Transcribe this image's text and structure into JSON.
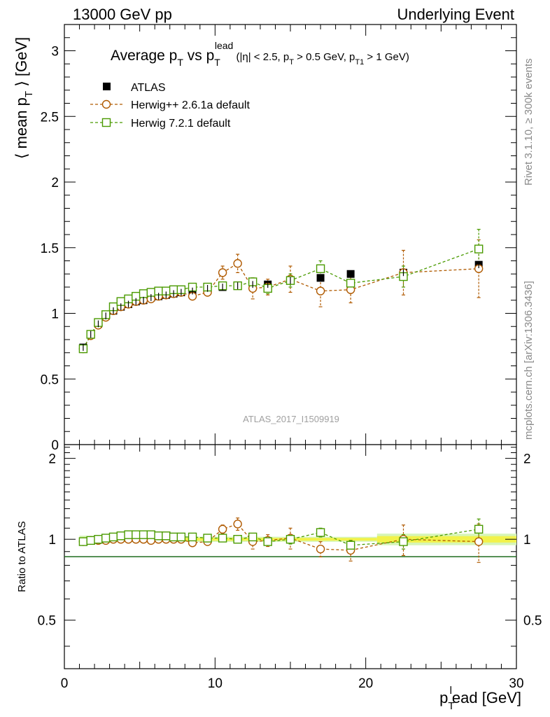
{
  "header": {
    "left": "13000 GeV pp",
    "right": "Underlying Event"
  },
  "side_labels": {
    "rivet": "Rivet 3.1.10, ≥ 300k events",
    "mcplots": "mcplots.cern.ch [arXiv:1306.3436]"
  },
  "watermark": "ATLAS_2017_I1509919",
  "colors": {
    "atlas": "#000000",
    "herwigpp": "#b05a00",
    "herwig7": "#4a9a00",
    "band_inner": "#f2f24a",
    "band_outer": "#d6f5b8"
  },
  "chart_data": [
    {
      "type": "scatter",
      "title": "Average p_T vs p_T^lead (|η| < 2.5, p_T > 0.5 GeV, p_T1 > 1 GeV)",
      "title_parts": {
        "a": "Average p",
        "a_sub": "T",
        "b": " vs p",
        "b_sub": "T",
        "b_sup": "lead",
        "c": " (|η| < 2.5, p",
        "c_sub": "T",
        "d": " > 0.5 GeV, p",
        "d_sub": "T1",
        "e": " > 1 GeV)"
      },
      "ylabel": "⟨ mean p_T ⟩ [GeV]",
      "ylabel_parts": {
        "a": "⟨ mean p",
        "sub": "T",
        "b": " ⟩ [GeV]"
      },
      "xlim": [
        0,
        30
      ],
      "ylim": [
        0,
        3.2
      ],
      "yticks": [
        0,
        0.5,
        1,
        1.5,
        2,
        2.5,
        3
      ],
      "ytick_labels": [
        "0",
        "0.5",
        "1",
        "1.5",
        "2",
        "2.5",
        "3"
      ],
      "legend_position": "top-left",
      "series": [
        {
          "name": "ATLAS",
          "marker": "filled-square",
          "x": [
            1.25,
            1.75,
            2.25,
            2.75,
            3.25,
            3.75,
            4.25,
            4.75,
            5.25,
            5.75,
            6.25,
            6.75,
            7.25,
            7.75,
            8.5,
            9.5,
            10.5,
            11.5,
            12.5,
            13.5,
            15,
            17,
            19,
            22.5,
            27.5
          ],
          "y": [
            0.74,
            0.84,
            0.92,
            0.98,
            1.02,
            1.05,
            1.07,
            1.09,
            1.1,
            1.12,
            1.13,
            1.14,
            1.15,
            1.16,
            1.17,
            1.19,
            1.2,
            1.21,
            1.22,
            1.22,
            1.25,
            1.27,
            1.3,
            1.31,
            1.37
          ],
          "yerr": [
            0.01,
            0.01,
            0.01,
            0.01,
            0.01,
            0.01,
            0.01,
            0.01,
            0.01,
            0.01,
            0.01,
            0.01,
            0.01,
            0.01,
            0.01,
            0.01,
            0.01,
            0.01,
            0.01,
            0.01,
            0.01,
            0.01,
            0.01,
            0.01,
            0.01
          ]
        },
        {
          "name": "Herwig++ 2.6.1a default",
          "marker": "open-circle",
          "x": [
            1.25,
            1.75,
            2.25,
            2.75,
            3.25,
            3.75,
            4.25,
            4.75,
            5.25,
            5.75,
            6.25,
            6.75,
            7.25,
            7.75,
            8.5,
            9.5,
            10.5,
            11.5,
            12.5,
            13.5,
            15,
            17,
            19,
            22.5,
            27.5
          ],
          "y": [
            0.73,
            0.83,
            0.91,
            0.97,
            1.02,
            1.05,
            1.07,
            1.09,
            1.1,
            1.11,
            1.13,
            1.14,
            1.15,
            1.16,
            1.13,
            1.16,
            1.31,
            1.38,
            1.19,
            1.2,
            1.26,
            1.17,
            1.18,
            1.31,
            1.34
          ],
          "yerr": [
            0.01,
            0.01,
            0.01,
            0.01,
            0.01,
            0.01,
            0.01,
            0.01,
            0.01,
            0.01,
            0.01,
            0.01,
            0.01,
            0.01,
            0.01,
            0.02,
            0.05,
            0.07,
            0.08,
            0.06,
            0.1,
            0.12,
            0.1,
            0.17,
            0.22
          ]
        },
        {
          "name": "Herwig 7.2.1 default",
          "marker": "open-square",
          "x": [
            1.25,
            1.75,
            2.25,
            2.75,
            3.25,
            3.75,
            4.25,
            4.75,
            5.25,
            5.75,
            6.25,
            6.75,
            7.25,
            7.75,
            8.5,
            9.5,
            10.5,
            11.5,
            12.5,
            13.5,
            15,
            17,
            19,
            22.5,
            27.5
          ],
          "y": [
            0.73,
            0.84,
            0.93,
            0.99,
            1.05,
            1.09,
            1.11,
            1.13,
            1.15,
            1.16,
            1.17,
            1.17,
            1.18,
            1.18,
            1.2,
            1.2,
            1.21,
            1.21,
            1.24,
            1.19,
            1.25,
            1.34,
            1.23,
            1.28,
            1.49
          ]
        }
      ],
      "yerr_herwig7": [
        0.01,
        0.01,
        0.01,
        0.01,
        0.01,
        0.01,
        0.01,
        0.01,
        0.01,
        0.01,
        0.01,
        0.01,
        0.01,
        0.01,
        0.01,
        0.01,
        0.02,
        0.02,
        0.03,
        0.04,
        0.05,
        0.06,
        0.06,
        0.08,
        0.15
      ]
    },
    {
      "type": "scatter",
      "ylabel": "Ratio to ATLAS",
      "xlabel": "p_T^l ead [GeV]",
      "xlabel_parts": {
        "a": "p",
        "sub": "T",
        "sup": "l",
        "b": "ead [GeV]"
      },
      "xlim": [
        0,
        30
      ],
      "ylim": [
        0.33,
        2.25
      ],
      "yticks": [
        0.5,
        1,
        2
      ],
      "ytick_labels": [
        "0.5",
        "1",
        "2"
      ],
      "xticks": [
        0,
        10,
        20,
        30
      ],
      "xtick_labels": [
        "0",
        "10",
        "20",
        "30"
      ],
      "reference": 1,
      "series": [
        {
          "name": "Herwig++ 2.6.1a default",
          "x": [
            1.25,
            1.75,
            2.25,
            2.75,
            3.25,
            3.75,
            4.25,
            4.75,
            5.25,
            5.75,
            6.25,
            6.75,
            7.25,
            7.75,
            8.5,
            9.5,
            10.5,
            11.5,
            12.5,
            13.5,
            15,
            17,
            19,
            22.5,
            27.5
          ],
          "y": [
            0.98,
            0.99,
            0.99,
            0.99,
            1.0,
            1.0,
            1.0,
            1.0,
            1.0,
            0.99,
            1.0,
            1.0,
            1.0,
            1.0,
            0.97,
            0.98,
            1.09,
            1.14,
            0.98,
            0.99,
            1.01,
            0.92,
            0.91,
            1.0,
            0.98
          ],
          "yerr": [
            0.01,
            0.01,
            0.01,
            0.01,
            0.01,
            0.01,
            0.01,
            0.01,
            0.01,
            0.01,
            0.01,
            0.01,
            0.01,
            0.01,
            0.02,
            0.02,
            0.04,
            0.06,
            0.06,
            0.05,
            0.09,
            0.06,
            0.08,
            0.13,
            0.16
          ]
        },
        {
          "name": "Herwig 7.2.1 default",
          "x": [
            1.25,
            1.75,
            2.25,
            2.75,
            3.25,
            3.75,
            4.25,
            4.75,
            5.25,
            5.75,
            6.25,
            6.75,
            7.25,
            7.75,
            8.5,
            9.5,
            10.5,
            11.5,
            12.5,
            13.5,
            15,
            17,
            19,
            22.5,
            27.5
          ],
          "y": [
            0.98,
            0.99,
            1.0,
            1.01,
            1.02,
            1.03,
            1.04,
            1.04,
            1.04,
            1.04,
            1.03,
            1.03,
            1.02,
            1.02,
            1.02,
            1.01,
            1.01,
            1.0,
            1.02,
            0.98,
            1.0,
            1.06,
            0.95,
            0.98,
            1.09
          ],
          "yerr": [
            0.01,
            0.01,
            0.01,
            0.01,
            0.01,
            0.01,
            0.01,
            0.01,
            0.01,
            0.01,
            0.01,
            0.01,
            0.01,
            0.01,
            0.01,
            0.01,
            0.01,
            0.02,
            0.02,
            0.03,
            0.04,
            0.04,
            0.04,
            0.06,
            0.1
          ]
        }
      ]
    }
  ]
}
